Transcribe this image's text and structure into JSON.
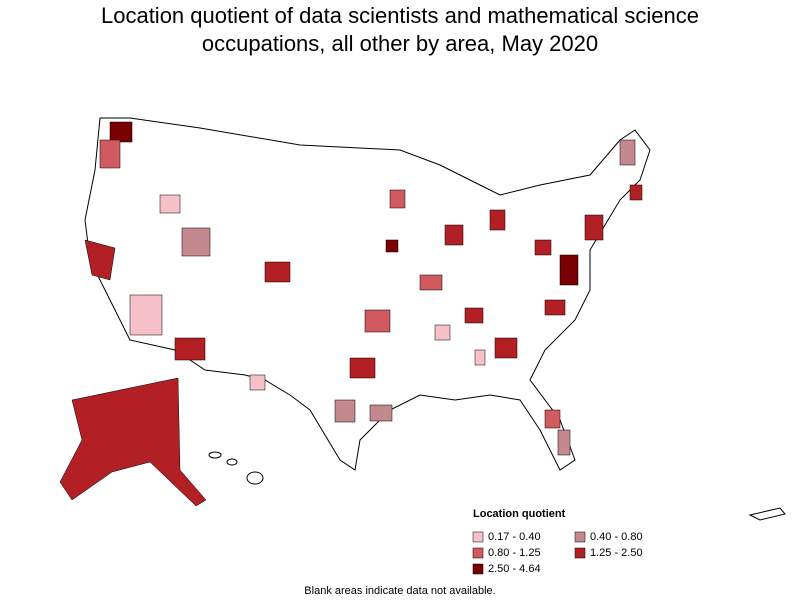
{
  "title": "Location quotient of data scientists and mathematical science occupations, all other by area, May 2020",
  "legend": {
    "title": "Location quotient",
    "items": [
      {
        "label": "0.17 - 0.40",
        "color": "#f6c0c8"
      },
      {
        "label": "0.40 - 0.80",
        "color": "#c4898e"
      },
      {
        "label": "0.80 - 1.25",
        "color": "#d05a60"
      },
      {
        "label": "1.25 - 2.50",
        "color": "#b21f24"
      },
      {
        "label": "2.50 - 4.64",
        "color": "#780000"
      }
    ]
  },
  "note": "Blank areas indicate data not available."
}
